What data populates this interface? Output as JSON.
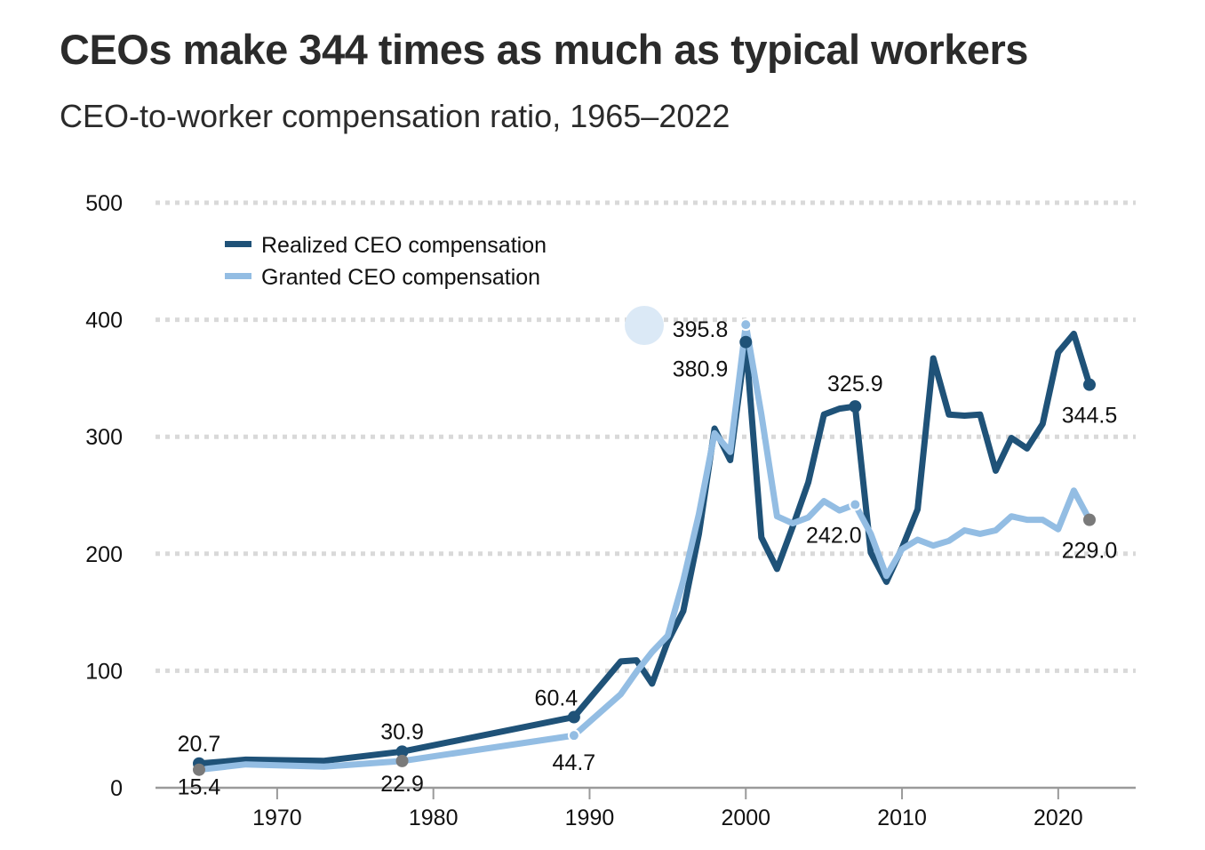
{
  "chart_data": {
    "type": "line",
    "title": "CEOs make 344 times as much as typical workers",
    "subtitle": "CEO-to-worker compensation ratio, 1965–2022",
    "xlabel": "",
    "ylabel": "",
    "xlim": [
      1962,
      2025
    ],
    "ylim": [
      0,
      500
    ],
    "yticks": [
      0,
      100,
      200,
      300,
      400,
      500
    ],
    "xticks": [
      1970,
      1980,
      1990,
      2000,
      2010,
      2020
    ],
    "grid": true,
    "legend_position": "top-left",
    "series": [
      {
        "name": "Realized CEO compensation",
        "color": "#1f5278",
        "x": [
          1965,
          1968,
          1973,
          1978,
          1989,
          1992,
          1993,
          1994,
          1995,
          1996,
          1997,
          1998,
          1999,
          2000,
          2001,
          2002,
          2003,
          2004,
          2005,
          2006,
          2007,
          2008,
          2009,
          2010,
          2011,
          2012,
          2013,
          2014,
          2015,
          2016,
          2017,
          2018,
          2019,
          2020,
          2021,
          2022
        ],
        "values": [
          20.7,
          24,
          23,
          30.9,
          60.4,
          108,
          109,
          89,
          125,
          151,
          217,
          307,
          280,
          380.9,
          214,
          187,
          223,
          261,
          319,
          324,
          325.9,
          201,
          176,
          205,
          238,
          367,
          319,
          318,
          319,
          271,
          299,
          290,
          311,
          372,
          388,
          344.5
        ]
      },
      {
        "name": "Granted CEO compensation",
        "color": "#93bde3",
        "x": [
          1965,
          1968,
          1973,
          1978,
          1989,
          1992,
          1993,
          1994,
          1995,
          1996,
          1997,
          1998,
          1999,
          2000,
          2001,
          2002,
          2003,
          2004,
          2005,
          2006,
          2007,
          2008,
          2009,
          2010,
          2011,
          2012,
          2013,
          2014,
          2015,
          2016,
          2017,
          2018,
          2019,
          2020,
          2021,
          2022
        ],
        "values": [
          15.4,
          20,
          18,
          22.9,
          44.7,
          80,
          99,
          116,
          130,
          177,
          234,
          303,
          287,
          395.8,
          319,
          232,
          226,
          231,
          245,
          237,
          242.0,
          217,
          181,
          204,
          212,
          207,
          211,
          220,
          217,
          220,
          232,
          229,
          229,
          221,
          254,
          229.0
        ]
      }
    ],
    "annotations": [
      {
        "series": 0,
        "year": 1965,
        "value": 20.7,
        "label": "20.7",
        "pos": "above",
        "marker": "dark"
      },
      {
        "series": 1,
        "year": 1965,
        "value": 15.4,
        "label": "15.4",
        "pos": "below",
        "marker": "gray"
      },
      {
        "series": 0,
        "year": 1978,
        "value": 30.9,
        "label": "30.9",
        "pos": "above",
        "marker": "dark"
      },
      {
        "series": 1,
        "year": 1978,
        "value": 22.9,
        "label": "22.9",
        "pos": "below",
        "marker": "gray"
      },
      {
        "series": 0,
        "year": 1989,
        "value": 60.4,
        "label": "60.4",
        "pos": "above-left",
        "marker": "dark"
      },
      {
        "series": 1,
        "year": 1989,
        "value": 44.7,
        "label": "44.7",
        "pos": "below",
        "marker": "light"
      },
      {
        "series": 1,
        "year": 2000,
        "value": 395.8,
        "label": "395.8",
        "pos": "left",
        "marker": "light"
      },
      {
        "series": 0,
        "year": 2000,
        "value": 380.9,
        "label": "380.9",
        "pos": "left-below",
        "marker": "dark"
      },
      {
        "series": 0,
        "year": 2007,
        "value": 325.9,
        "label": "325.9",
        "pos": "above",
        "marker": "dark"
      },
      {
        "series": 1,
        "year": 2007,
        "value": 242.0,
        "label": "242.0",
        "pos": "below-left",
        "marker": "light"
      },
      {
        "series": 0,
        "year": 2022,
        "value": 344.5,
        "label": "344.5",
        "pos": "below",
        "marker": "dark"
      },
      {
        "series": 1,
        "year": 2022,
        "value": 229.0,
        "label": "229.0",
        "pos": "below",
        "marker": "gray"
      }
    ]
  },
  "legend": {
    "items": [
      {
        "label": "Realized CEO compensation",
        "color": "#1f5278"
      },
      {
        "label": "Granted CEO compensation",
        "color": "#93bde3"
      }
    ]
  },
  "colors": {
    "grid": "#d9d9d9",
    "axis": "#9a9a9a",
    "marker_gray": "#7a7a7a",
    "hover_halo": "#dbe9f6"
  }
}
